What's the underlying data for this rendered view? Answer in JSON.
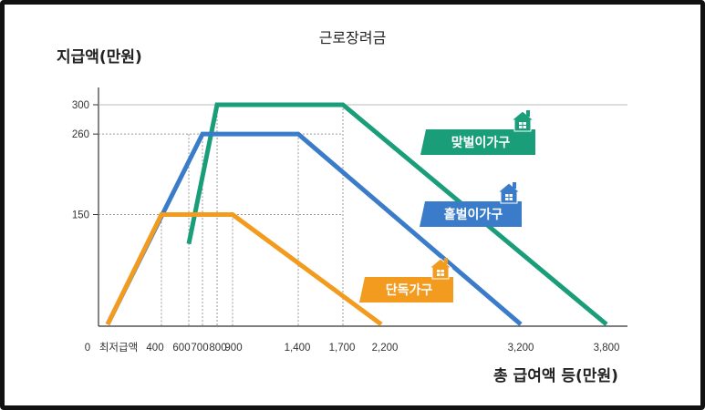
{
  "chart_data": {
    "type": "line",
    "title": "근로장려금",
    "ylabel": "지급액(만원)",
    "xlabel": "총 급여액 등(만원)",
    "x_ticks": [
      "0",
      "최저급액",
      "400",
      "600",
      "700",
      "800",
      "900",
      "1,400",
      "1,700",
      "2,200",
      "3,200",
      "3,800"
    ],
    "y_ticks": [
      "300",
      "260",
      "150"
    ],
    "grid": "dashed reference lines at 150, 260, 300 and at x breakpoints",
    "series": [
      {
        "name": "맞벌이가구",
        "color": "#1a9e7a",
        "x": [
          600,
          800,
          1700,
          3800
        ],
        "y": [
          110,
          300,
          300,
          0
        ]
      },
      {
        "name": "홑벌이가구",
        "color": "#3a7cc9",
        "x": [
          0,
          700,
          1400,
          3200
        ],
        "y": [
          0,
          260,
          260,
          0
        ]
      },
      {
        "name": "단독가구",
        "color": "#f29b1f",
        "x": [
          0,
          400,
          900,
          2200
        ],
        "y": [
          0,
          150,
          150,
          0
        ]
      }
    ]
  }
}
